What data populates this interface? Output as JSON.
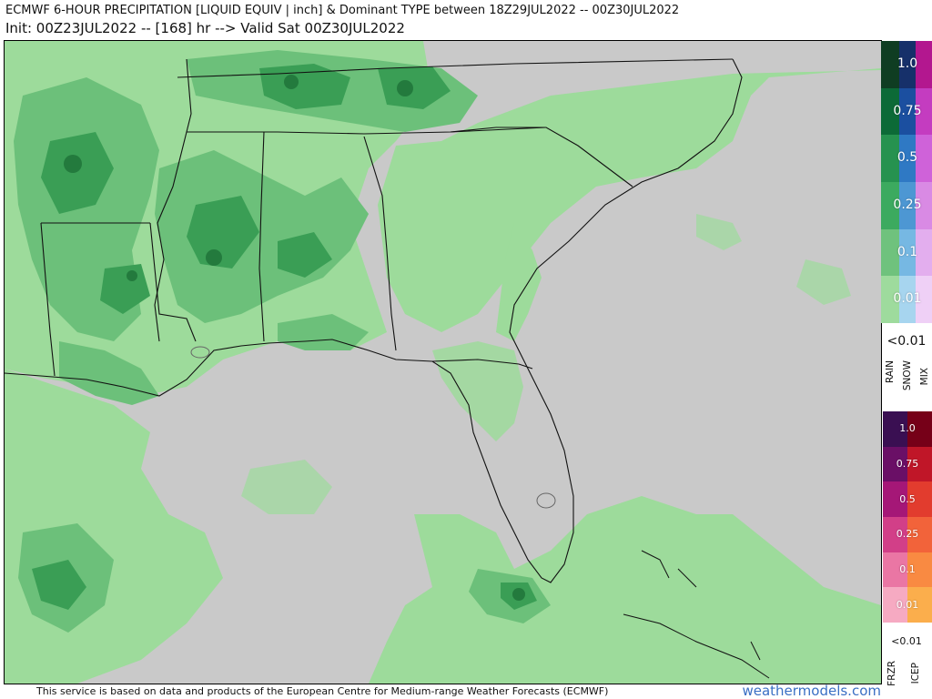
{
  "header": {
    "title": "ECMWF 6-HOUR PRECIPITATION [LIQUID EQUIV | inch] & Dominant TYPE between 18Z29JUL2022 -- 00Z30JUL2022",
    "subtitle": "Init: 00Z23JUL2022 -- [168] hr --> Valid Sat 00Z30JUL2022"
  },
  "legend_top": {
    "levels": [
      "1.0",
      "0.75",
      "0.5",
      "0.25",
      "0.1",
      "0.01"
    ],
    "below_label": "<0.01",
    "types": [
      "RAIN",
      "SNOW",
      "MIX"
    ],
    "colors": {
      "rain": [
        "#0f3d22",
        "#0c6a37",
        "#26924f",
        "#3caa5f",
        "#6fc27d",
        "#9edb9d"
      ],
      "snow": [
        "#16306a",
        "#1b4fa0",
        "#2f79c4",
        "#4d97d3",
        "#76b8e3",
        "#a7d5ef"
      ],
      "mix": [
        "#b3178f",
        "#c43cc0",
        "#cf62d9",
        "#d98ae4",
        "#e3aeee",
        "#efd0f6"
      ]
    }
  },
  "legend_bottom": {
    "levels": [
      "1.0",
      "0.75",
      "0.5",
      "0.25",
      "0.1",
      "0.01"
    ],
    "below_label": "<0.01",
    "types": [
      "FRZR",
      "ICEP"
    ],
    "colors": {
      "frzr": [
        "#3a0f52",
        "#6a0f66",
        "#a51777",
        "#d23f88",
        "#ea76a4",
        "#f6aac2"
      ],
      "icep": [
        "#760018",
        "#c01628",
        "#e23c2e",
        "#f2633a",
        "#f98a42",
        "#fbae4c"
      ]
    }
  },
  "map": {
    "background": "#c9c9c9",
    "light_green": "#9ddb9b",
    "mid_green": "#6cc07a",
    "dark_green": "#3a9e55",
    "deep_green": "#237a3d"
  },
  "footer": {
    "note": "This service is based on data and products of the European Centre for Medium-range Weather Forecasts (ECMWF)",
    "brand": "weathermodels.com"
  }
}
